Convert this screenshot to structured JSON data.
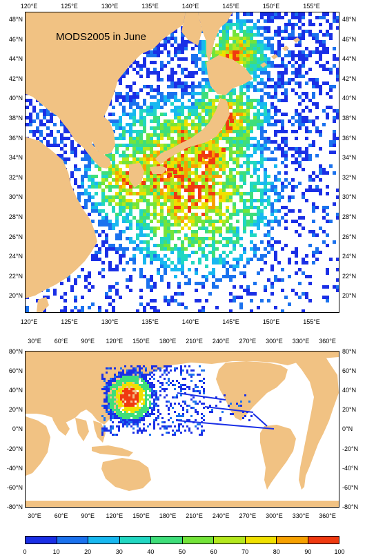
{
  "colors": {
    "land": "#f1c283",
    "ocean": "#ffffff",
    "scale": [
      "#1a2fe6",
      "#1b72ee",
      "#18b8f0",
      "#22d7c2",
      "#3fde7a",
      "#74e43a",
      "#b4e81e",
      "#f0e000",
      "#f7a100",
      "#f03a10"
    ]
  },
  "top_map": {
    "title": "MODS2005 in June",
    "lon_labels": [
      "120°E",
      "125°E",
      "130°E",
      "135°E",
      "140°E",
      "145°E",
      "150°E",
      "155°E"
    ],
    "lat_labels": [
      "48°N",
      "46°N",
      "44°N",
      "42°N",
      "40°N",
      "38°N",
      "36°N",
      "34°N",
      "32°N",
      "30°N",
      "28°N",
      "26°N",
      "24°N",
      "22°N",
      "20°N"
    ]
  },
  "bottom_map": {
    "lon_labels": [
      "30°E",
      "60°E",
      "90°E",
      "120°E",
      "150°E",
      "180°E",
      "210°E",
      "240°E",
      "270°E",
      "300°E",
      "330°E",
      "360°E"
    ],
    "lat_labels": [
      "80°N",
      "60°N",
      "40°N",
      "20°N",
      "0°N",
      "-20°N",
      "-40°N",
      "-60°N",
      "-80°N"
    ]
  },
  "colorbar": {
    "labels": [
      "0",
      "10",
      "20",
      "30",
      "40",
      "50",
      "60",
      "70",
      "80",
      "90",
      "100"
    ]
  }
}
